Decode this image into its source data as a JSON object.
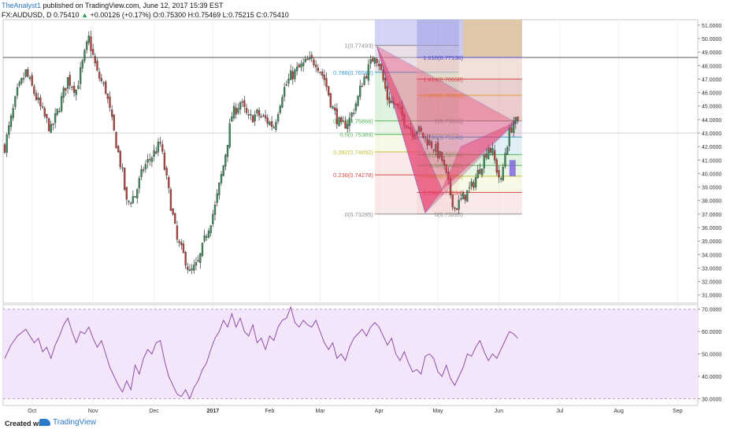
{
  "header": {
    "author": "TheAnalyst1",
    "published_text": "published on TradingView.com, June 12, 2017 15:39 EST",
    "symbol": "FX:AUDUSD, D",
    "last": "0.75410",
    "arrow": "▲",
    "change": "+0.00126 (+0.17%)",
    "ohlc": "O:0.75300 H:0.75469 L:0.75215 C:0.75410"
  },
  "footer": {
    "created_with": "Created with",
    "brand": "TradingView"
  },
  "chart_data": [
    {
      "type": "candlestick",
      "title": "FX:AUDUSD, D",
      "x_tick_labels": [
        "Oct",
        "Nov",
        "Dec",
        "2017",
        "Feb",
        "Mar",
        "Apr",
        "May",
        "Jun",
        "Jul",
        "Aug",
        "Sep"
      ],
      "y_tick_labels": [
        "31.0000",
        "32.0000",
        "33.0000",
        "34.0000",
        "35.0000",
        "36.0000",
        "37.0000",
        "38.0000",
        "39.0000",
        "40.0000",
        "41.0000",
        "42.0000",
        "43.0000",
        "44.0000",
        "45.0000",
        "46.0000",
        "47.0000",
        "48.0000",
        "49.0000",
        "50.0000",
        "51.0000"
      ],
      "ylim": [
        30.4,
        51.4
      ],
      "colors": {
        "up": "#3c8a59",
        "down": "#b5423c"
      },
      "approx_close_path": [
        [
          0,
          42
        ],
        [
          3,
          44
        ],
        [
          6,
          46
        ],
        [
          10,
          47.5
        ],
        [
          14,
          46
        ],
        [
          18,
          44.5
        ],
        [
          22,
          43.2
        ],
        [
          26,
          45
        ],
        [
          30,
          47
        ],
        [
          34,
          46.2
        ],
        [
          38,
          48.8
        ],
        [
          40,
          50
        ],
        [
          44,
          47.4
        ],
        [
          48,
          46.2
        ],
        [
          52,
          43
        ],
        [
          56,
          40
        ],
        [
          58,
          37.8
        ],
        [
          62,
          38.4
        ],
        [
          66,
          40.4
        ],
        [
          70,
          41.3
        ],
        [
          74,
          42.2
        ],
        [
          78,
          38.6
        ],
        [
          82,
          35
        ],
        [
          86,
          33.6
        ],
        [
          88,
          32.6
        ],
        [
          92,
          33.3
        ],
        [
          96,
          35.6
        ],
        [
          100,
          37.5
        ],
        [
          104,
          40.6
        ],
        [
          108,
          44.3
        ],
        [
          112,
          45.3
        ],
        [
          116,
          44
        ],
        [
          120,
          44.4
        ],
        [
          124,
          44
        ],
        [
          128,
          43.5
        ],
        [
          132,
          46
        ],
        [
          136,
          47.2
        ],
        [
          140,
          47.8
        ],
        [
          144,
          48.3
        ],
        [
          148,
          48.3
        ],
        [
          152,
          47
        ],
        [
          156,
          44.8
        ],
        [
          160,
          43.4
        ],
        [
          164,
          44
        ],
        [
          168,
          45.6
        ],
        [
          170,
          46.8
        ],
        [
          174,
          48.1
        ],
        [
          176,
          48.9
        ],
        [
          178,
          48.2
        ],
        [
          182,
          45.6
        ],
        [
          186,
          45
        ],
        [
          190,
          44
        ],
        [
          194,
          43.1
        ],
        [
          196,
          43.3
        ],
        [
          200,
          42.6
        ],
        [
          204,
          42
        ],
        [
          208,
          41
        ],
        [
          212,
          38.5
        ],
        [
          214,
          37.4
        ],
        [
          218,
          38.2
        ],
        [
          222,
          39
        ],
        [
          226,
          40.4
        ],
        [
          230,
          42
        ],
        [
          232,
          41.5
        ],
        [
          234,
          40.3
        ],
        [
          236,
          39.3
        ],
        [
          238,
          41.6
        ],
        [
          240,
          43
        ],
        [
          242,
          43.9
        ],
        [
          244,
          43.6
        ]
      ],
      "patterns": {
        "bat_outline": {
          "X": [
            177,
            49.43
          ],
          "A": [
            200,
            37.1
          ],
          "B": [
            208,
            38.8
          ],
          "C": [
            217,
            42.0
          ],
          "D": [
            243,
            43.8
          ]
        },
        "fib_retracement_1": {
          "levels": [
            "1(0.77493)",
            "0.786(0.76582)",
            "0.618(0.75866)",
            "0.5(0.75389)",
            "0.382(0.74892)",
            "0.236(0.74278)",
            "0(0.73285)"
          ],
          "values": [
            49.5,
            47.5,
            43.9,
            42.9,
            41.6,
            39.9,
            37.0
          ]
        },
        "fib_extension_2": {
          "levels": [
            "1.618(0.77136)",
            "1.414(0.76650)",
            "1.272(0.76308)",
            "1(0.75655)",
            "0.786(0.75146)",
            "0.618(0.74744)",
            "0.5(0.74462)",
            "0.382(0.74181)",
            "0.236(0.73834)",
            "0(0.73285)"
          ],
          "values": [
            48.6,
            47.0,
            45.8,
            43.9,
            42.7,
            41.4,
            40.6,
            39.8,
            38.6,
            37.0
          ]
        }
      }
    },
    {
      "type": "line",
      "title": "RSI",
      "x_tick_labels": [
        "Oct",
        "Nov",
        "Dec",
        "2017",
        "Feb",
        "Mar",
        "Apr",
        "May",
        "Jun",
        "Jul",
        "Aug",
        "Sep"
      ],
      "y_tick_labels": [
        "30.0000",
        "40.0000",
        "50.0000",
        "60.0000",
        "70.0000"
      ],
      "ylim": [
        27,
        72
      ],
      "band": [
        30,
        70
      ],
      "series": [
        {
          "values": [
            [
              0,
              48
            ],
            [
              3,
              54
            ],
            [
              6,
              58
            ],
            [
              10,
              61
            ],
            [
              12,
              58
            ],
            [
              14,
              55
            ],
            [
              16,
              57
            ],
            [
              18,
              51
            ],
            [
              20,
              53
            ],
            [
              22,
              48
            ],
            [
              24,
              54
            ],
            [
              26,
              58
            ],
            [
              28,
              63
            ],
            [
              30,
              66
            ],
            [
              32,
              60
            ],
            [
              34,
              55
            ],
            [
              36,
              60
            ],
            [
              38,
              59
            ],
            [
              40,
              62
            ],
            [
              42,
              57
            ],
            [
              44,
              53
            ],
            [
              46,
              56
            ],
            [
              50,
              44
            ],
            [
              52,
              40
            ],
            [
              54,
              36
            ],
            [
              56,
              33
            ],
            [
              58,
              38
            ],
            [
              60,
              34
            ],
            [
              62,
              45
            ],
            [
              64,
              41
            ],
            [
              66,
              48
            ],
            [
              68,
              52
            ],
            [
              70,
              50
            ],
            [
              72,
              55
            ],
            [
              74,
              56
            ],
            [
              76,
              47
            ],
            [
              78,
              40
            ],
            [
              80,
              36
            ],
            [
              82,
              32
            ],
            [
              84,
              31
            ],
            [
              86,
              34
            ],
            [
              88,
              30
            ],
            [
              90,
              35
            ],
            [
              92,
              38
            ],
            [
              94,
              43
            ],
            [
              96,
              46
            ],
            [
              98,
              52
            ],
            [
              100,
              57
            ],
            [
              102,
              60
            ],
            [
              104,
              65
            ],
            [
              106,
              62
            ],
            [
              108,
              68
            ],
            [
              110,
              62
            ],
            [
              112,
              66
            ],
            [
              114,
              60
            ],
            [
              116,
              58
            ],
            [
              118,
              63
            ],
            [
              120,
              55
            ],
            [
              122,
              57
            ],
            [
              124,
              52
            ],
            [
              126,
              58
            ],
            [
              128,
              56
            ],
            [
              130,
              62
            ],
            [
              132,
              65
            ],
            [
              134,
              66
            ],
            [
              136,
              71
            ],
            [
              138,
              64
            ],
            [
              140,
              62
            ],
            [
              142,
              65
            ],
            [
              144,
              63
            ],
            [
              146,
              62
            ],
            [
              148,
              65
            ],
            [
              150,
              60
            ],
            [
              152,
              55
            ],
            [
              154,
              52
            ],
            [
              156,
              55
            ],
            [
              158,
              48
            ],
            [
              160,
              50
            ],
            [
              162,
              47
            ],
            [
              164,
              53
            ],
            [
              166,
              57
            ],
            [
              168,
              59
            ],
            [
              170,
              61
            ],
            [
              172,
              58
            ],
            [
              174,
              62
            ],
            [
              176,
              64
            ],
            [
              178,
              62
            ],
            [
              180,
              58
            ],
            [
              182,
              54
            ],
            [
              184,
              57
            ],
            [
              186,
              50
            ],
            [
              188,
              47
            ],
            [
              190,
              51
            ],
            [
              192,
              46
            ],
            [
              194,
              42
            ],
            [
              196,
              43
            ],
            [
              198,
              41
            ],
            [
              200,
              49
            ],
            [
              202,
              50
            ],
            [
              204,
              48
            ],
            [
              206,
              42
            ],
            [
              208,
              40
            ],
            [
              210,
              45
            ],
            [
              212,
              39
            ],
            [
              214,
              36
            ],
            [
              216,
              40
            ],
            [
              218,
              44
            ],
            [
              220,
              50
            ],
            [
              222,
              49
            ],
            [
              224,
              53
            ],
            [
              226,
              56
            ],
            [
              228,
              51
            ],
            [
              230,
              47
            ],
            [
              232,
              50
            ],
            [
              234,
              48
            ],
            [
              236,
              52
            ],
            [
              238,
              56
            ],
            [
              240,
              60
            ],
            [
              242,
              59
            ],
            [
              244,
              57
            ]
          ]
        }
      ]
    }
  ]
}
